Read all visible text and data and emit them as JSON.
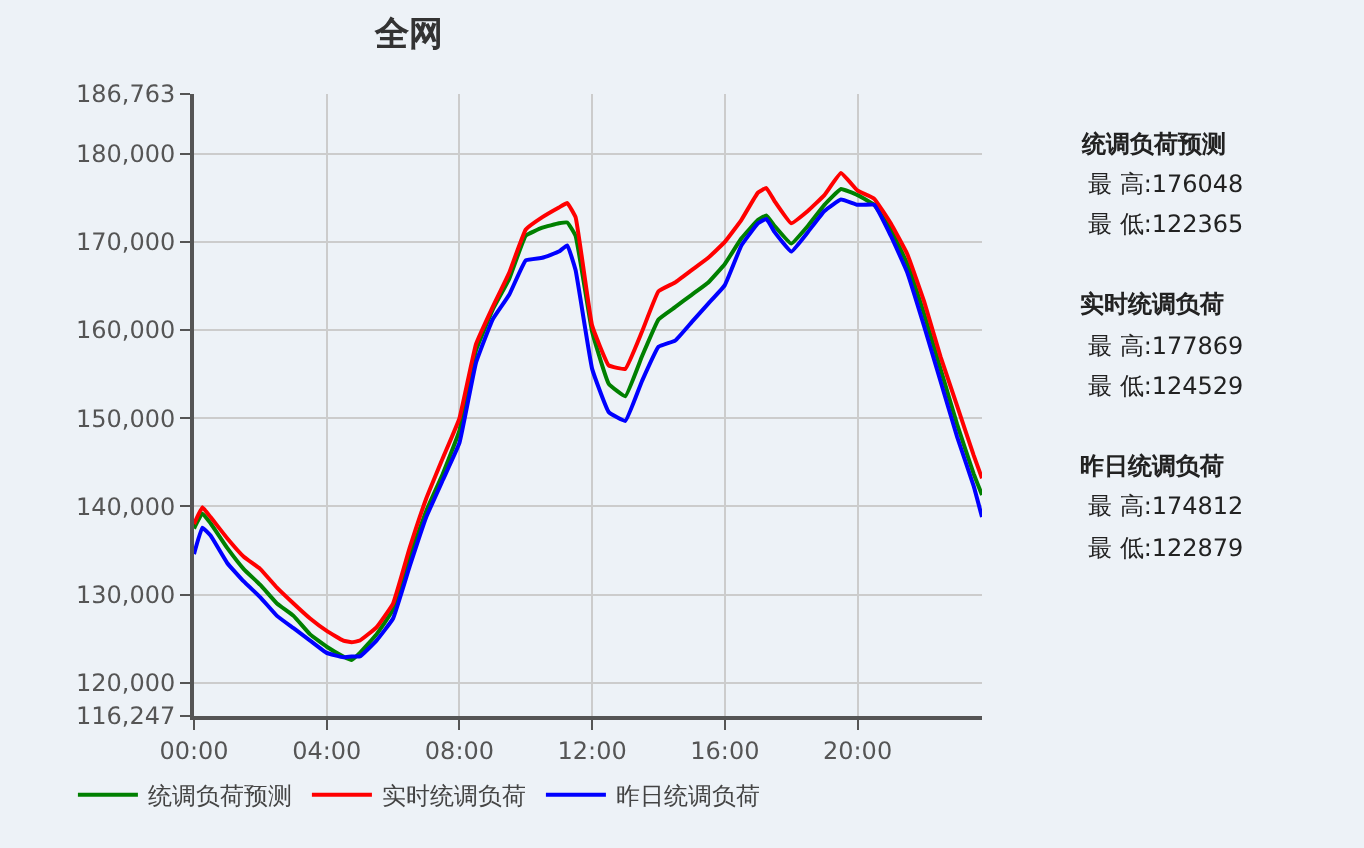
{
  "chart_data": {
    "type": "line",
    "title": "全网",
    "x": [
      0,
      0.25,
      0.5,
      1,
      1.5,
      2,
      2.5,
      3,
      3.5,
      4,
      4.5,
      4.75,
      5,
      5.5,
      6,
      6.5,
      7,
      7.5,
      8,
      8.5,
      9,
      9.5,
      10,
      10.5,
      11,
      11.25,
      11.5,
      12,
      12.5,
      13,
      13.5,
      14,
      14.5,
      15,
      15.5,
      16,
      16.5,
      17,
      17.25,
      17.5,
      18,
      18.5,
      19,
      19.5,
      20,
      20.5,
      21,
      21.5,
      22,
      22.5,
      23,
      23.5,
      23.75
    ],
    "series": [
      {
        "name": "统调负荷预测",
        "color": "#008000",
        "values": [
          137500,
          139200,
          138100,
          135300,
          132900,
          131100,
          129000,
          127600,
          125500,
          124100,
          123000,
          122600,
          123400,
          125500,
          128300,
          134300,
          139500,
          143700,
          148600,
          157700,
          162300,
          165800,
          170700,
          171600,
          172100,
          172200,
          170700,
          159800,
          153900,
          152500,
          157000,
          161200,
          162600,
          164000,
          165400,
          167500,
          170400,
          172500,
          173000,
          171800,
          169800,
          171800,
          174200,
          176000,
          175300,
          174200,
          171400,
          167500,
          161900,
          155600,
          149300,
          143700,
          141300
        ]
      },
      {
        "name": "实时统调负荷",
        "color": "#ff0000",
        "values": [
          138000,
          139900,
          138800,
          136400,
          134300,
          132900,
          130800,
          129000,
          127300,
          125900,
          124800,
          124600,
          124800,
          126300,
          129000,
          135300,
          140900,
          145500,
          150000,
          158400,
          162600,
          166500,
          171400,
          172800,
          173900,
          174400,
          172800,
          160500,
          156000,
          155600,
          159800,
          164400,
          165400,
          166800,
          168200,
          170000,
          172500,
          175600,
          176100,
          174600,
          172100,
          173500,
          175300,
          177800,
          175800,
          174900,
          172100,
          168600,
          163300,
          157000,
          151400,
          145800,
          143200
        ]
      },
      {
        "name": "昨日统调负荷",
        "color": "#0000ff",
        "values": [
          134600,
          137600,
          136700,
          133600,
          131500,
          129700,
          127600,
          126200,
          124800,
          123400,
          122900,
          123000,
          123000,
          124800,
          127300,
          133200,
          138800,
          143000,
          147200,
          156300,
          161200,
          164000,
          167900,
          168200,
          168900,
          169600,
          166800,
          155600,
          150700,
          149700,
          154200,
          158100,
          158800,
          160900,
          163000,
          165100,
          169600,
          172100,
          172600,
          171100,
          168900,
          171100,
          173500,
          174800,
          174200,
          174200,
          170700,
          166500,
          160500,
          154200,
          147900,
          142300,
          138800
        ]
      }
    ],
    "xlim": [
      0,
      23.75
    ],
    "xticks": [
      {
        "value": 0,
        "label": "00:00"
      },
      {
        "value": 4,
        "label": "04:00"
      },
      {
        "value": 8,
        "label": "08:00"
      },
      {
        "value": 12,
        "label": "12:00"
      },
      {
        "value": 16,
        "label": "16:00"
      },
      {
        "value": 20,
        "label": "20:00"
      }
    ],
    "ylim": [
      116247,
      186763
    ],
    "yticks": [
      {
        "value": 116247,
        "label": "116,247"
      },
      {
        "value": 120000,
        "label": "120,000"
      },
      {
        "value": 130000,
        "label": "130,000"
      },
      {
        "value": 140000,
        "label": "140,000"
      },
      {
        "value": 150000,
        "label": "150,000"
      },
      {
        "value": 160000,
        "label": "160,000"
      },
      {
        "value": 170000,
        "label": "170,000"
      },
      {
        "value": 180000,
        "label": "180,000"
      },
      {
        "value": 186763,
        "label": "186,763"
      }
    ],
    "annotations": [
      "统调负荷预测",
      "最 高:176048",
      "最 低:122365",
      "实时统调负荷",
      "最 高:177869",
      "最 低:124529",
      "昨日统调负荷",
      "最 高:174812",
      "最 低:122879"
    ],
    "grid": true,
    "legend": "bottom",
    "line_style": "solid"
  }
}
